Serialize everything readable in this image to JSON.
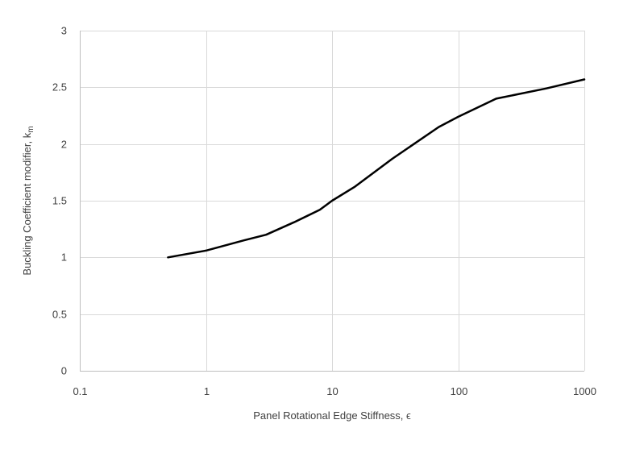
{
  "chart_data": {
    "type": "line",
    "xscale": "log",
    "xlim": [
      0.1,
      1000
    ],
    "ylim": [
      0,
      3
    ],
    "xticks": [
      0.1,
      1,
      10,
      100,
      1000
    ],
    "xtick_labels": [
      "0.1",
      "1",
      "10",
      "100",
      "1000"
    ],
    "yticks": [
      0,
      0.5,
      1,
      1.5,
      2,
      2.5,
      3
    ],
    "ytick_labels": [
      "0",
      "0.5",
      "1",
      "1.5",
      "2",
      "2.5",
      "3"
    ],
    "xlabel": "Panel Rotational Edge Stiffness, ϵ",
    "ylabel_main": "Buckling Coefficient modifier, k",
    "ylabel_sub": "m",
    "grid": true,
    "legend": "none",
    "series": [
      {
        "color": "#000000",
        "x": [
          0.5,
          1,
          2,
          3,
          5,
          8,
          10,
          15,
          30,
          70,
          100,
          200,
          500,
          1000
        ],
        "y": [
          1.0,
          1.06,
          1.15,
          1.2,
          1.31,
          1.42,
          1.5,
          1.62,
          1.87,
          2.15,
          2.24,
          2.4,
          2.49,
          2.57
        ]
      }
    ]
  }
}
